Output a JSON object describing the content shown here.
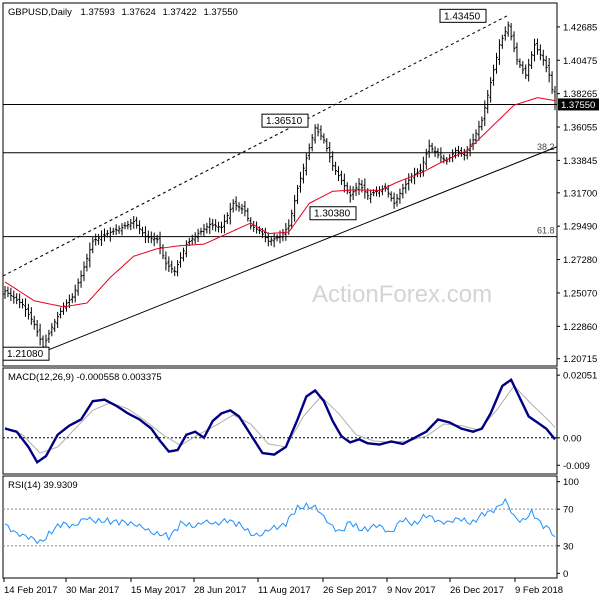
{
  "chart_data": [
    {
      "type": "candlestick",
      "title": "GBPUSD,Daily",
      "ohlc_header": [
        "1.37593",
        "1.37624",
        "1.37422",
        "1.37550"
      ],
      "y_ticks": [
        1.42685,
        1.40475,
        1.38265,
        1.36055,
        1.33845,
        1.317,
        1.2949,
        1.2728,
        1.2507,
        1.2286,
        1.20715
      ],
      "y_tick_labels": [
        "1.42685",
        "1.40475",
        "1.38265",
        "1.36055",
        "1.33845",
        "1.31700",
        "1.29490",
        "1.27280",
        "1.25070",
        "1.22860",
        "1.20715"
      ],
      "ylim": [
        1.203,
        1.442
      ],
      "last_price_label": "1.37550",
      "last_price": 1.3755,
      "x_labels": [
        "14 Feb 2017",
        "30 Mar 2017",
        "15 May 2017",
        "28 Jun 2017",
        "11 Aug 2017",
        "26 Sep 2017",
        "9 Nov 2017",
        "26 Dec 2017",
        "9 Feb 2018"
      ],
      "annotations": [
        {
          "text": "1.43450",
          "price": 1.4345
        },
        {
          "text": "1.36510",
          "price": 1.3651
        },
        {
          "text": "1.30380",
          "price": 1.3038
        },
        {
          "text": "1.21080",
          "price": 1.2108
        }
      ],
      "horizontal_levels": [
        {
          "label": "",
          "price": 1.3755
        },
        {
          "label": "38.2",
          "price": 1.3435
        },
        {
          "label": "61.8",
          "price": 1.288
        }
      ],
      "trend_channel": {
        "support": [
          [
            1.2108,
            1.3475
          ]
        ],
        "resistance": [
          [
            1.262,
            1.4345
          ]
        ]
      },
      "sma_keypoints": [
        [
          0,
          1.258
        ],
        [
          10,
          1.2455
        ],
        [
          20,
          1.2415
        ],
        [
          28,
          1.244
        ],
        [
          36,
          1.261
        ],
        [
          44,
          1.275
        ],
        [
          52,
          1.28
        ],
        [
          60,
          1.282
        ],
        [
          68,
          1.283
        ],
        [
          76,
          1.29
        ],
        [
          84,
          1.297
        ],
        [
          90,
          1.29
        ],
        [
          97,
          1.291
        ],
        [
          104,
          1.31
        ],
        [
          112,
          1.318
        ],
        [
          120,
          1.319
        ],
        [
          128,
          1.3185
        ],
        [
          134,
          1.324
        ],
        [
          142,
          1.33
        ],
        [
          150,
          1.338
        ],
        [
          158,
          1.345
        ],
        [
          166,
          1.36
        ],
        [
          174,
          1.375
        ],
        [
          182,
          1.38
        ],
        [
          188,
          1.378
        ]
      ],
      "price_keypoints": [
        [
          0,
          1.252
        ],
        [
          6,
          1.243
        ],
        [
          10,
          1.23
        ],
        [
          13,
          1.215
        ],
        [
          16,
          1.228
        ],
        [
          20,
          1.242
        ],
        [
          23,
          1.248
        ],
        [
          26,
          1.262
        ],
        [
          30,
          1.285
        ],
        [
          35,
          1.29
        ],
        [
          40,
          1.294
        ],
        [
          44,
          1.298
        ],
        [
          48,
          1.288
        ],
        [
          52,
          1.286
        ],
        [
          55,
          1.27
        ],
        [
          58,
          1.265
        ],
        [
          62,
          1.283
        ],
        [
          66,
          1.29
        ],
        [
          70,
          1.296
        ],
        [
          74,
          1.294
        ],
        [
          78,
          1.31
        ],
        [
          82,
          1.305
        ],
        [
          84,
          1.295
        ],
        [
          87,
          1.292
        ],
        [
          90,
          1.285
        ],
        [
          94,
          1.288
        ],
        [
          97,
          1.295
        ],
        [
          100,
          1.32
        ],
        [
          103,
          1.34
        ],
        [
          106,
          1.36
        ],
        [
          109,
          1.352
        ],
        [
          112,
          1.335
        ],
        [
          115,
          1.325
        ],
        [
          118,
          1.315
        ],
        [
          121,
          1.323
        ],
        [
          124,
          1.315
        ],
        [
          127,
          1.318
        ],
        [
          130,
          1.32
        ],
        [
          133,
          1.31
        ],
        [
          136,
          1.32
        ],
        [
          139,
          1.328
        ],
        [
          142,
          1.332
        ],
        [
          145,
          1.348
        ],
        [
          148,
          1.342
        ],
        [
          151,
          1.338
        ],
        [
          154,
          1.345
        ],
        [
          157,
          1.342
        ],
        [
          160,
          1.352
        ],
        [
          163,
          1.365
        ],
        [
          166,
          1.39
        ],
        [
          169,
          1.415
        ],
        [
          172,
          1.428
        ],
        [
          175,
          1.405
        ],
        [
          178,
          1.395
        ],
        [
          181,
          1.415
        ],
        [
          184,
          1.405
        ],
        [
          186,
          1.395
        ],
        [
          188,
          1.3755
        ]
      ]
    },
    {
      "type": "line",
      "title": "MACD(12,26,9) -0.000558 0.003375",
      "y_tick_labels": [
        "0.02051",
        "0.00",
        "-0.009"
      ],
      "y_ticks": [
        0.02051,
        0.0,
        -0.009
      ],
      "ylim": [
        -0.0112,
        0.0222
      ],
      "zero_line": 0.0,
      "series": [
        {
          "keypoints": [
            [
              0,
              0.003
            ],
            [
              4,
              0.002
            ],
            [
              8,
              -0.003
            ],
            [
              11,
              -0.008
            ],
            [
              14,
              -0.006
            ],
            [
              18,
              0.001
            ],
            [
              22,
              0.004
            ],
            [
              26,
              0.006
            ],
            [
              30,
              0.012
            ],
            [
              34,
              0.0125
            ],
            [
              38,
              0.0105
            ],
            [
              42,
              0.008
            ],
            [
              46,
              0.006
            ],
            [
              50,
              0.003
            ],
            [
              53,
              -0.001
            ],
            [
              56,
              -0.0045
            ],
            [
              59,
              -0.004
            ],
            [
              62,
              0.001
            ],
            [
              65,
              0.002
            ],
            [
              68,
              0.0
            ],
            [
              71,
              0.0055
            ],
            [
              74,
              0.008
            ],
            [
              77,
              0.009
            ],
            [
              80,
              0.007
            ],
            [
              84,
              0.001
            ],
            [
              88,
              -0.005
            ],
            [
              92,
              -0.0055
            ],
            [
              96,
              -0.003
            ],
            [
              100,
              0.006
            ],
            [
              103,
              0.0135
            ],
            [
              106,
              0.0155
            ],
            [
              109,
              0.012
            ],
            [
              112,
              0.0055
            ],
            [
              115,
              0.0005
            ],
            [
              118,
              -0.0015
            ],
            [
              121,
              -0.0005
            ],
            [
              124,
              -0.0018
            ],
            [
              128,
              -0.0022
            ],
            [
              132,
              -0.0012
            ],
            [
              136,
              -0.002
            ],
            [
              140,
              0.0
            ],
            [
              144,
              0.002
            ],
            [
              148,
              0.006
            ],
            [
              152,
              0.005
            ],
            [
              156,
              0.003
            ],
            [
              160,
              0.002
            ],
            [
              163,
              0.003
            ],
            [
              166,
              0.008
            ],
            [
              170,
              0.017
            ],
            [
              173,
              0.019
            ],
            [
              176,
              0.013
            ],
            [
              179,
              0.007
            ],
            [
              182,
              0.005
            ],
            [
              185,
              0.003
            ],
            [
              188,
              -0.0005
            ]
          ]
        },
        {
          "keypoints": [
            [
              0,
              0.0035
            ],
            [
              6,
              0.001
            ],
            [
              12,
              -0.005
            ],
            [
              18,
              -0.003
            ],
            [
              24,
              0.003
            ],
            [
              30,
              0.009
            ],
            [
              36,
              0.0115
            ],
            [
              42,
              0.0095
            ],
            [
              48,
              0.0055
            ],
            [
              54,
              0.001
            ],
            [
              60,
              -0.0025
            ],
            [
              66,
              0.001
            ],
            [
              72,
              0.004
            ],
            [
              78,
              0.0075
            ],
            [
              84,
              0.0045
            ],
            [
              90,
              -0.002
            ],
            [
              96,
              -0.003
            ],
            [
              102,
              0.007
            ],
            [
              108,
              0.0135
            ],
            [
              114,
              0.008
            ],
            [
              120,
              0.001
            ],
            [
              126,
              -0.001
            ],
            [
              132,
              -0.0015
            ],
            [
              138,
              -0.001
            ],
            [
              144,
              0.0005
            ],
            [
              150,
              0.0045
            ],
            [
              156,
              0.004
            ],
            [
              162,
              0.0025
            ],
            [
              168,
              0.009
            ],
            [
              174,
              0.017
            ],
            [
              180,
              0.011
            ],
            [
              186,
              0.0055
            ],
            [
              188,
              0.0034
            ]
          ]
        }
      ]
    },
    {
      "type": "line",
      "title": "RSI(14) 39.9309",
      "y_tick_labels": [
        "100",
        "70",
        "30",
        "0"
      ],
      "y_ticks": [
        100,
        70,
        30,
        0
      ],
      "ylim": [
        -4,
        104
      ],
      "reference_lines": [
        70,
        30
      ],
      "series": [
        {
          "keypoints": [
            [
              0,
              52
            ],
            [
              4,
              45
            ],
            [
              8,
              38
            ],
            [
              12,
              35
            ],
            [
              16,
              45
            ],
            [
              20,
              55
            ],
            [
              24,
              52
            ],
            [
              28,
              60
            ],
            [
              32,
              58
            ],
            [
              36,
              55
            ],
            [
              40,
              58
            ],
            [
              44,
              52
            ],
            [
              48,
              50
            ],
            [
              52,
              42
            ],
            [
              56,
              40
            ],
            [
              60,
              55
            ],
            [
              64,
              50
            ],
            [
              68,
              58
            ],
            [
              72,
              52
            ],
            [
              76,
              60
            ],
            [
              80,
              52
            ],
            [
              84,
              44
            ],
            [
              88,
              42
            ],
            [
              92,
              50
            ],
            [
              96,
              55
            ],
            [
              100,
              70
            ],
            [
              103,
              75
            ],
            [
              106,
              72
            ],
            [
              109,
              60
            ],
            [
              112,
              52
            ],
            [
              115,
              45
            ],
            [
              118,
              55
            ],
            [
              121,
              50
            ],
            [
              124,
              48
            ],
            [
              128,
              52
            ],
            [
              132,
              45
            ],
            [
              136,
              58
            ],
            [
              140,
              55
            ],
            [
              144,
              62
            ],
            [
              148,
              58
            ],
            [
              152,
              55
            ],
            [
              156,
              60
            ],
            [
              160,
              55
            ],
            [
              164,
              65
            ],
            [
              168,
              72
            ],
            [
              171,
              78
            ],
            [
              174,
              62
            ],
            [
              177,
              58
            ],
            [
              180,
              65
            ],
            [
              183,
              55
            ],
            [
              186,
              50
            ],
            [
              188,
              40
            ]
          ]
        }
      ]
    }
  ],
  "watermark": "ActionForex.com",
  "colors": {
    "candle": "#000000",
    "sma": "#e8001f",
    "macd": "#000080",
    "signal": "#b0b0b0",
    "rsi": "#1e90ff",
    "grid": "#000000",
    "background": "#ffffff"
  }
}
